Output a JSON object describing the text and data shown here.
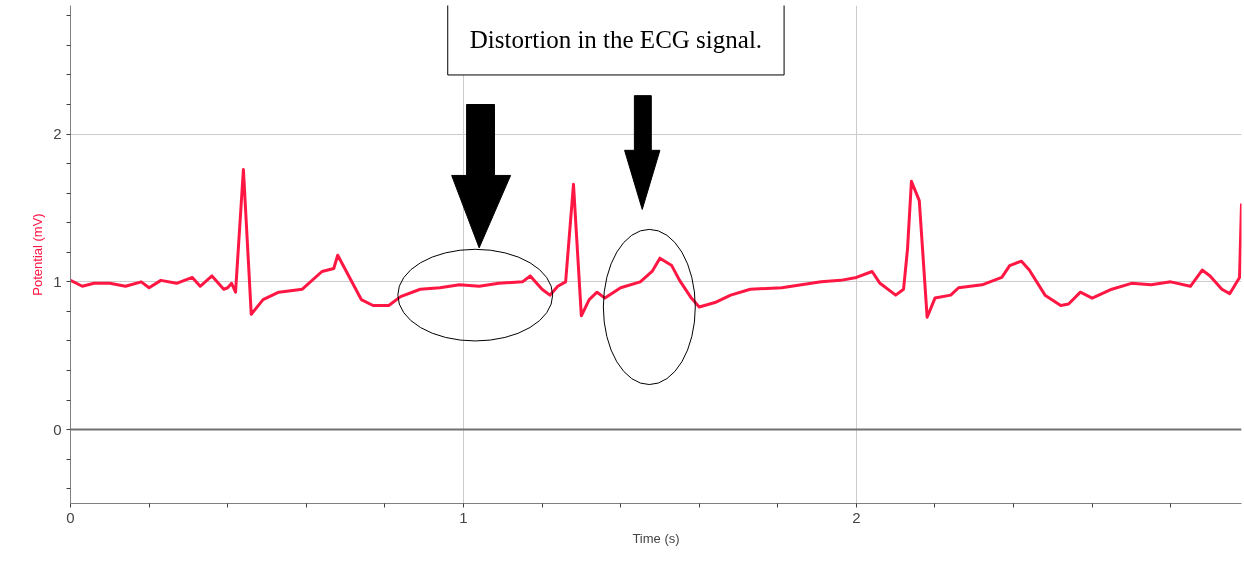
{
  "chart_data": {
    "type": "line",
    "xlabel": "Time (s)",
    "ylabel": "Potential (mV)",
    "annotations": [
      "Distortion in the ECG signal."
    ],
    "x": [
      0.0,
      0.03,
      0.06,
      0.1,
      0.14,
      0.18,
      0.2,
      0.23,
      0.27,
      0.31,
      0.33,
      0.36,
      0.39,
      0.4,
      0.41,
      0.42,
      0.44,
      0.46,
      0.49,
      0.53,
      0.59,
      0.64,
      0.67,
      0.68,
      0.7,
      0.74,
      0.77,
      0.81,
      0.84,
      0.89,
      0.94,
      0.99,
      1.04,
      1.09,
      1.15,
      1.17,
      1.2,
      1.22,
      1.24,
      1.26,
      1.28,
      1.3,
      1.32,
      1.34,
      1.36,
      1.4,
      1.45,
      1.48,
      1.5,
      1.53,
      1.55,
      1.58,
      1.6,
      1.64,
      1.68,
      1.73,
      1.81,
      1.86,
      1.91,
      1.96,
      2.0,
      2.04,
      2.06,
      2.1,
      2.12,
      2.13,
      2.14,
      2.16,
      2.18,
      2.2,
      2.24,
      2.26,
      2.32,
      2.37,
      2.39,
      2.42,
      2.44,
      2.48,
      2.52,
      2.54,
      2.57,
      2.6,
      2.65,
      2.7,
      2.75,
      2.8,
      2.85,
      2.88,
      2.9,
      2.93,
      2.95,
      2.975,
      2.98
    ],
    "series": [
      {
        "color": "#ff1744",
        "values": [
          1.01,
          0.97,
          0.99,
          0.99,
          0.97,
          1.0,
          0.96,
          1.01,
          0.99,
          1.03,
          0.97,
          1.04,
          0.95,
          0.96,
          0.99,
          0.93,
          1.76,
          0.78,
          0.88,
          0.93,
          0.95,
          1.07,
          1.09,
          1.18,
          1.08,
          0.88,
          0.84,
          0.84,
          0.9,
          0.95,
          0.96,
          0.98,
          0.97,
          0.99,
          1.0,
          1.04,
          0.95,
          0.91,
          0.97,
          1.0,
          1.66,
          0.77,
          0.88,
          0.93,
          0.89,
          0.96,
          1.0,
          1.07,
          1.16,
          1.11,
          1.01,
          0.89,
          0.83,
          0.86,
          0.91,
          0.95,
          0.96,
          0.98,
          1.0,
          1.01,
          1.03,
          1.07,
          0.99,
          0.91,
          0.95,
          1.22,
          1.68,
          1.55,
          0.76,
          0.89,
          0.91,
          0.96,
          0.98,
          1.03,
          1.11,
          1.14,
          1.08,
          0.91,
          0.84,
          0.85,
          0.93,
          0.89,
          0.95,
          0.99,
          0.98,
          1.0,
          0.97,
          1.08,
          1.04,
          0.95,
          0.92,
          1.03,
          1.53
        ]
      }
    ],
    "xlim": [
      0,
      2.98
    ],
    "ylim": [
      -0.5,
      2.87
    ],
    "xticks": [
      0,
      {
        "value": 0.2,
        "label": null
      },
      {
        "value": 0.4,
        "label": null
      },
      {
        "value": 0.6,
        "label": null
      },
      {
        "value": 0.8,
        "label": null
      },
      1,
      {
        "value": 1.2,
        "label": null
      },
      {
        "value": 1.4,
        "label": null
      },
      {
        "value": 1.6,
        "label": null
      },
      {
        "value": 1.8,
        "label": null
      },
      2,
      {
        "value": 2.2,
        "label": null
      },
      {
        "value": 2.4,
        "label": null
      },
      {
        "value": 2.6,
        "label": null
      },
      {
        "value": 2.8,
        "label": null
      }
    ],
    "yticks": [
      {
        "value": -0.4,
        "label": null
      },
      {
        "value": -0.2,
        "label": null
      },
      0,
      {
        "value": 0.2,
        "label": null
      },
      {
        "value": 0.4,
        "label": null
      },
      {
        "value": 0.6,
        "label": null
      },
      {
        "value": 0.8,
        "label": null
      },
      1,
      {
        "value": 1.2,
        "label": null
      },
      {
        "value": 1.4,
        "label": null
      },
      {
        "value": 1.6,
        "label": null
      },
      {
        "value": 1.8,
        "label": null
      },
      2,
      {
        "value": 2.2,
        "label": null
      },
      {
        "value": 2.4,
        "label": null
      },
      {
        "value": 2.6,
        "label": null
      },
      {
        "value": 2.8,
        "label": null
      }
    ],
    "grid": true,
    "marker": "none",
    "line_style": "solid",
    "ref_lines": [
      {
        "axis": "y",
        "value": 0,
        "color": "#707070"
      }
    ]
  }
}
